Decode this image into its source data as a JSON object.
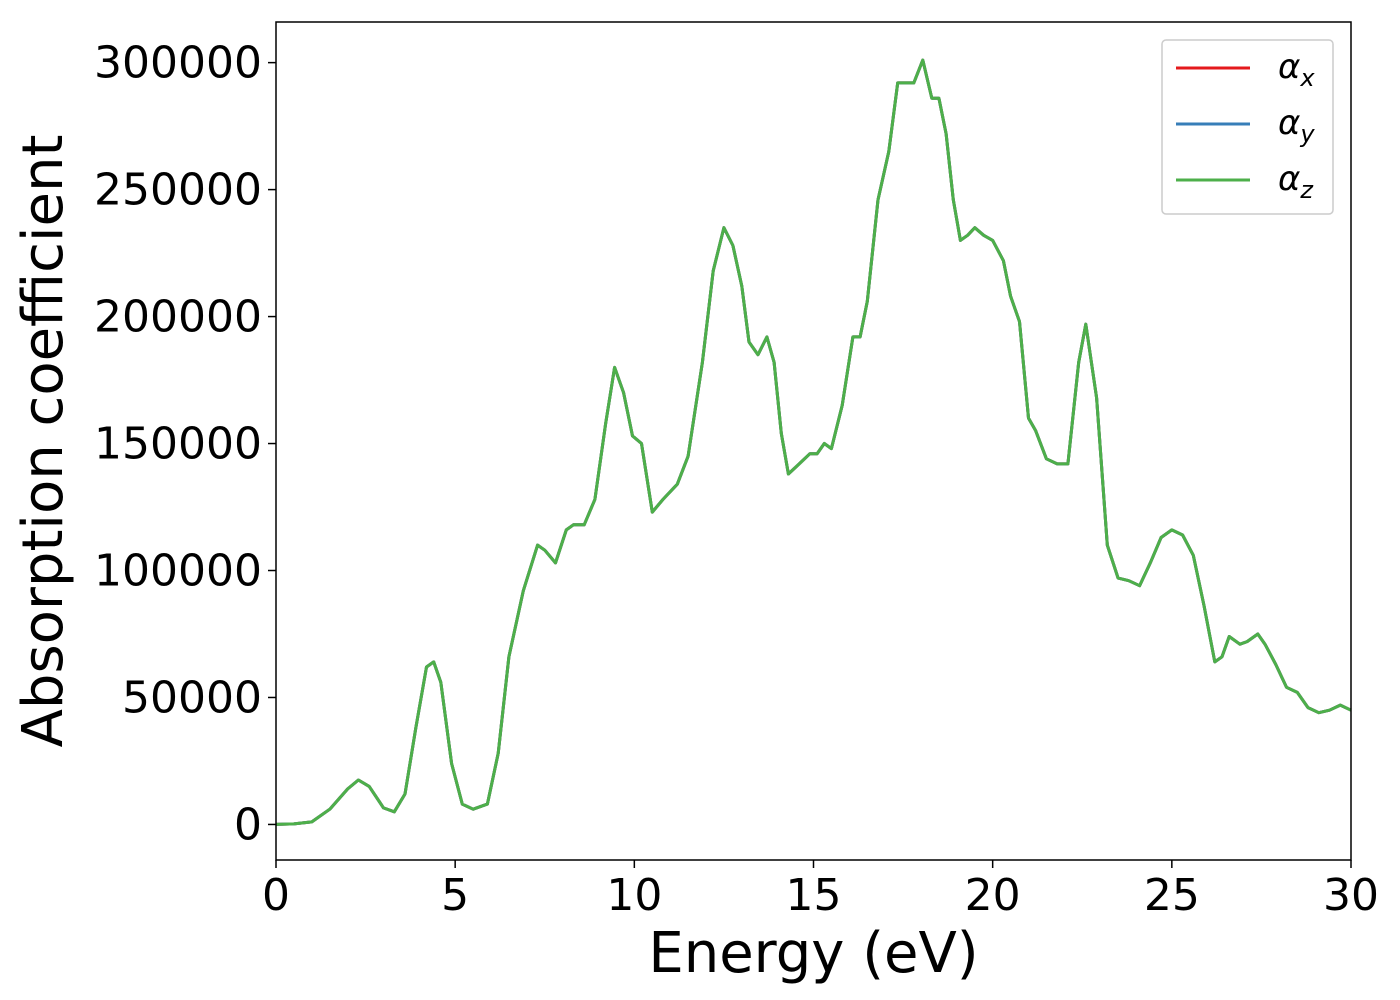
{
  "chart_data": {
    "type": "line",
    "title": "",
    "xlabel": "Energy (eV)",
    "ylabel": "Absorption coefficient",
    "xlim": [
      0,
      30
    ],
    "ylim": [
      -14000,
      316000
    ],
    "x_ticks": [
      "0",
      "5",
      "10",
      "15",
      "20",
      "25",
      "30"
    ],
    "y_ticks": [
      "0",
      "50000",
      "100000",
      "150000",
      "200000",
      "250000",
      "300000"
    ],
    "grid": false,
    "legend_position": "top-right",
    "series": [
      {
        "name": "α",
        "subscript": "x",
        "color": "#e41a1c",
        "x": [
          0,
          0.5,
          1.0,
          1.5,
          2.0,
          2.3,
          2.6,
          3.0,
          3.3,
          3.6,
          3.9,
          4.2,
          4.4,
          4.6,
          4.9,
          5.2,
          5.5,
          5.9,
          6.2,
          6.5,
          6.9,
          7.3,
          7.5,
          7.8,
          8.1,
          8.3,
          8.6,
          8.9,
          9.2,
          9.45,
          9.7,
          9.95,
          10.2,
          10.5,
          10.8,
          11.2,
          11.5,
          11.9,
          12.2,
          12.5,
          12.75,
          13.0,
          13.2,
          13.45,
          13.7,
          13.9,
          14.1,
          14.3,
          14.6,
          14.9,
          15.1,
          15.3,
          15.5,
          15.8,
          16.1,
          16.3,
          16.5,
          16.8,
          17.1,
          17.35,
          17.6,
          17.8,
          18.05,
          18.3,
          18.5,
          18.7,
          18.9,
          19.1,
          19.3,
          19.5,
          19.75,
          20.0,
          20.3,
          20.5,
          20.75,
          21.0,
          21.2,
          21.5,
          21.8,
          22.1,
          22.4,
          22.6,
          22.9,
          23.2,
          23.5,
          23.8,
          24.1,
          24.4,
          24.7,
          25.0,
          25.3,
          25.6,
          25.9,
          26.2,
          26.4,
          26.6,
          26.9,
          27.1,
          27.4,
          27.6,
          27.9,
          28.2,
          28.5,
          28.8,
          29.1,
          29.4,
          29.7,
          30.0
        ],
        "y": [
          0,
          200,
          1000,
          6000,
          14000,
          17500,
          15000,
          6500,
          5000,
          12000,
          38000,
          62000,
          64000,
          56000,
          24000,
          8000,
          6000,
          8000,
          28000,
          66000,
          92000,
          110000,
          108000,
          103000,
          116000,
          118000,
          118000,
          128000,
          158000,
          180000,
          170000,
          153000,
          150000,
          123000,
          128000,
          134000,
          145000,
          182000,
          218000,
          235000,
          228000,
          212000,
          190000,
          185000,
          192000,
          182000,
          154000,
          138000,
          142000,
          146000,
          146000,
          150000,
          148000,
          165000,
          192000,
          192000,
          206000,
          246000,
          265000,
          292000,
          292000,
          292000,
          301000,
          286000,
          286000,
          272000,
          246000,
          230000,
          232000,
          235000,
          232000,
          230000,
          222000,
          208000,
          198000,
          160000,
          155000,
          144000,
          142000,
          142000,
          182000,
          197000,
          168000,
          110000,
          97000,
          96000,
          94000,
          103000,
          113000,
          116000,
          114000,
          106000,
          86000,
          64000,
          66000,
          74000,
          71000,
          72000,
          75000,
          71000,
          63000,
          54000,
          52000,
          46000,
          44000,
          45000,
          47000,
          45000
        ]
      },
      {
        "name": "α",
        "subscript": "y",
        "color": "#377eb8",
        "x": [
          0,
          0.5,
          1.0,
          1.5,
          2.0,
          2.3,
          2.6,
          3.0,
          3.3,
          3.6,
          3.9,
          4.2,
          4.4,
          4.6,
          4.9,
          5.2,
          5.5,
          5.9,
          6.2,
          6.5,
          6.9,
          7.3,
          7.5,
          7.8,
          8.1,
          8.3,
          8.6,
          8.9,
          9.2,
          9.45,
          9.7,
          9.95,
          10.2,
          10.5,
          10.8,
          11.2,
          11.5,
          11.9,
          12.2,
          12.5,
          12.75,
          13.0,
          13.2,
          13.45,
          13.7,
          13.9,
          14.1,
          14.3,
          14.6,
          14.9,
          15.1,
          15.3,
          15.5,
          15.8,
          16.1,
          16.3,
          16.5,
          16.8,
          17.1,
          17.35,
          17.6,
          17.8,
          18.05,
          18.3,
          18.5,
          18.7,
          18.9,
          19.1,
          19.3,
          19.5,
          19.75,
          20.0,
          20.3,
          20.5,
          20.75,
          21.0,
          21.2,
          21.5,
          21.8,
          22.1,
          22.4,
          22.6,
          22.9,
          23.2,
          23.5,
          23.8,
          24.1,
          24.4,
          24.7,
          25.0,
          25.3,
          25.6,
          25.9,
          26.2,
          26.4,
          26.6,
          26.9,
          27.1,
          27.4,
          27.6,
          27.9,
          28.2,
          28.5,
          28.8,
          29.1,
          29.4,
          29.7,
          30.0
        ],
        "y": [
          0,
          200,
          1000,
          6000,
          14000,
          17500,
          15000,
          6500,
          5000,
          12000,
          38000,
          62000,
          64000,
          56000,
          24000,
          8000,
          6000,
          8000,
          28000,
          66000,
          92000,
          110000,
          108000,
          103000,
          116000,
          118000,
          118000,
          128000,
          158000,
          180000,
          170000,
          153000,
          150000,
          123000,
          128000,
          134000,
          145000,
          182000,
          218000,
          235000,
          228000,
          212000,
          190000,
          185000,
          192000,
          182000,
          154000,
          138000,
          142000,
          146000,
          146000,
          150000,
          148000,
          165000,
          192000,
          192000,
          206000,
          246000,
          265000,
          292000,
          292000,
          292000,
          301000,
          286000,
          286000,
          272000,
          246000,
          230000,
          232000,
          235000,
          232000,
          230000,
          222000,
          208000,
          198000,
          160000,
          155000,
          144000,
          142000,
          142000,
          182000,
          197000,
          168000,
          110000,
          97000,
          96000,
          94000,
          103000,
          113000,
          116000,
          114000,
          106000,
          86000,
          64000,
          66000,
          74000,
          71000,
          72000,
          75000,
          71000,
          63000,
          54000,
          52000,
          46000,
          44000,
          45000,
          47000,
          45000
        ]
      },
      {
        "name": "α",
        "subscript": "z",
        "color": "#4daf4a",
        "x": [
          0,
          0.5,
          1.0,
          1.5,
          2.0,
          2.3,
          2.6,
          3.0,
          3.3,
          3.6,
          3.9,
          4.2,
          4.4,
          4.6,
          4.9,
          5.2,
          5.5,
          5.9,
          6.2,
          6.5,
          6.9,
          7.3,
          7.5,
          7.8,
          8.1,
          8.3,
          8.6,
          8.9,
          9.2,
          9.45,
          9.7,
          9.95,
          10.2,
          10.5,
          10.8,
          11.2,
          11.5,
          11.9,
          12.2,
          12.5,
          12.75,
          13.0,
          13.2,
          13.45,
          13.7,
          13.9,
          14.1,
          14.3,
          14.6,
          14.9,
          15.1,
          15.3,
          15.5,
          15.8,
          16.1,
          16.3,
          16.5,
          16.8,
          17.1,
          17.35,
          17.6,
          17.8,
          18.05,
          18.3,
          18.5,
          18.7,
          18.9,
          19.1,
          19.3,
          19.5,
          19.75,
          20.0,
          20.3,
          20.5,
          20.75,
          21.0,
          21.2,
          21.5,
          21.8,
          22.1,
          22.4,
          22.6,
          22.9,
          23.2,
          23.5,
          23.8,
          24.1,
          24.4,
          24.7,
          25.0,
          25.3,
          25.6,
          25.9,
          26.2,
          26.4,
          26.6,
          26.9,
          27.1,
          27.4,
          27.6,
          27.9,
          28.2,
          28.5,
          28.8,
          29.1,
          29.4,
          29.7,
          30.0
        ],
        "y": [
          0,
          200,
          1000,
          6000,
          14000,
          17500,
          15000,
          6500,
          5000,
          12000,
          38000,
          62000,
          64000,
          56000,
          24000,
          8000,
          6000,
          8000,
          28000,
          66000,
          92000,
          110000,
          108000,
          103000,
          116000,
          118000,
          118000,
          128000,
          158000,
          180000,
          170000,
          153000,
          150000,
          123000,
          128000,
          134000,
          145000,
          182000,
          218000,
          235000,
          228000,
          212000,
          190000,
          185000,
          192000,
          182000,
          154000,
          138000,
          142000,
          146000,
          146000,
          150000,
          148000,
          165000,
          192000,
          192000,
          206000,
          246000,
          265000,
          292000,
          292000,
          292000,
          301000,
          286000,
          286000,
          272000,
          246000,
          230000,
          232000,
          235000,
          232000,
          230000,
          222000,
          208000,
          198000,
          160000,
          155000,
          144000,
          142000,
          142000,
          182000,
          197000,
          168000,
          110000,
          97000,
          96000,
          94000,
          103000,
          113000,
          116000,
          114000,
          106000,
          86000,
          64000,
          66000,
          74000,
          71000,
          72000,
          75000,
          71000,
          63000,
          54000,
          52000,
          46000,
          44000,
          45000,
          47000,
          45000
        ]
      }
    ]
  }
}
